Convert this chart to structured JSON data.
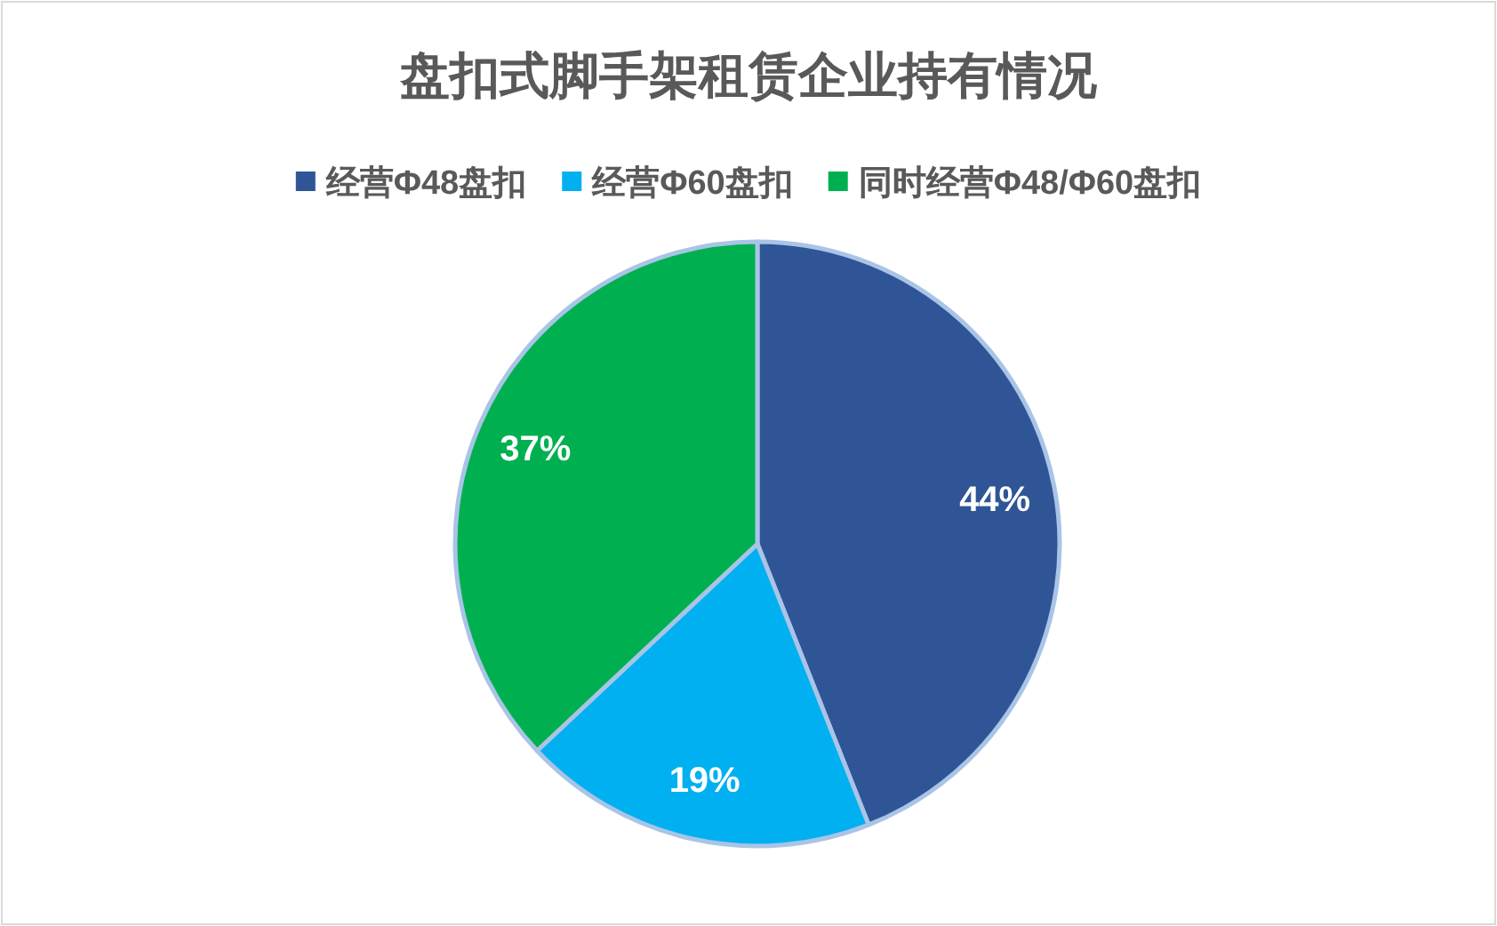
{
  "chart_data": {
    "type": "pie",
    "title": "盘扣式脚手架租赁企业持有情况",
    "categories": [
      "经营Φ48盘扣",
      "经营Φ60盘扣",
      "同时经营Φ48/Φ60盘扣"
    ],
    "values": [
      44,
      19,
      37
    ],
    "colors": [
      "#2f5597",
      "#00b0f0",
      "#00b050"
    ],
    "value_labels": [
      "44%",
      "19%",
      "37%"
    ],
    "legend": "top"
  }
}
